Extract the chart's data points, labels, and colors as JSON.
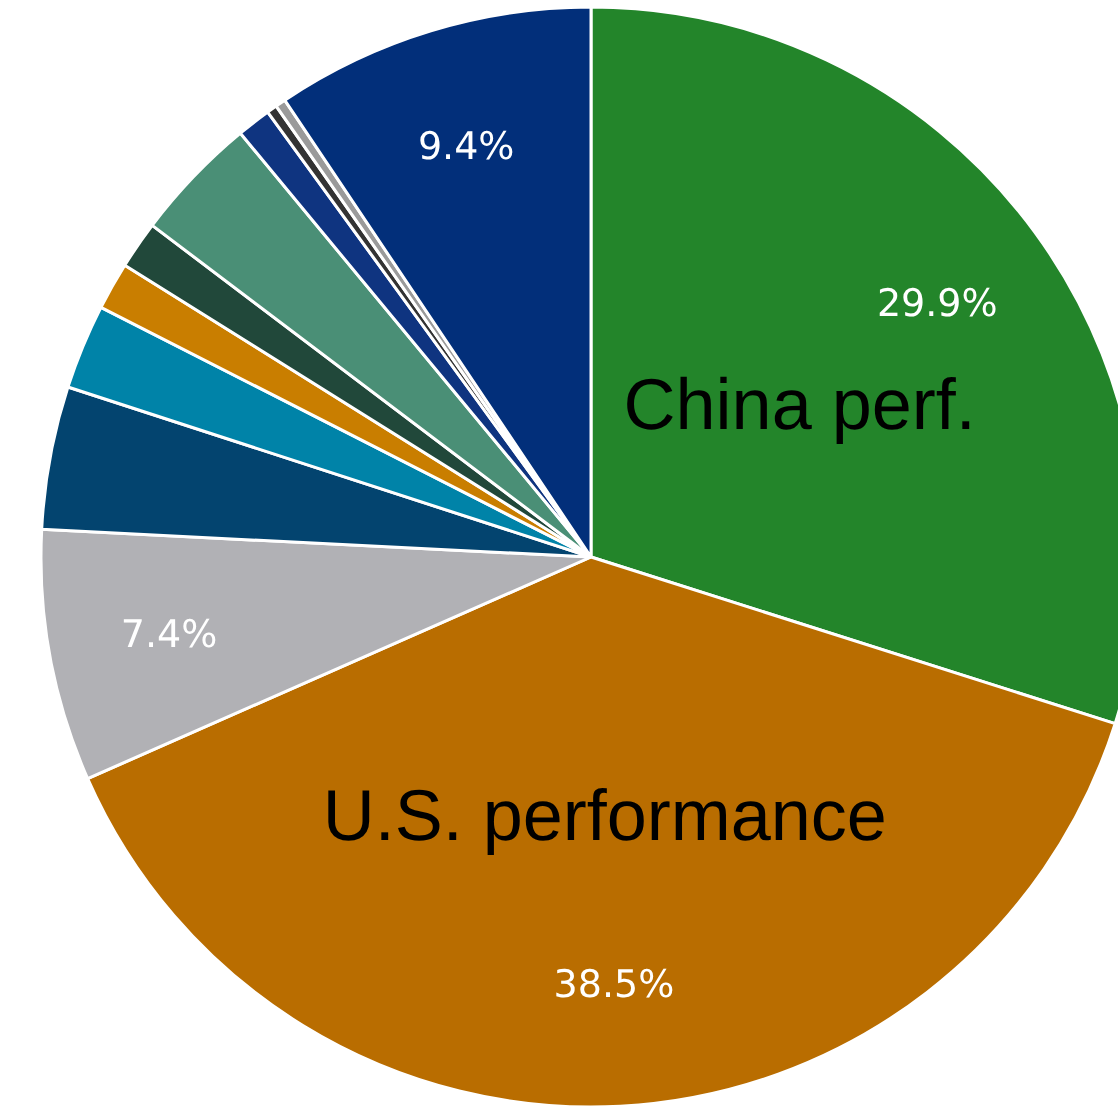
{
  "chart_data": {
    "type": "pie",
    "categories": [
      "China perf.",
      "U.S. performance",
      null,
      null,
      null,
      null,
      null,
      null,
      null,
      null,
      null,
      null
    ],
    "values": [
      29.9,
      38.5,
      7.4,
      4.2,
      2.5,
      1.4,
      1.4,
      3.7,
      1.0,
      0.3,
      0.3,
      9.4
    ],
    "colors": [
      "#23852a",
      "#b96d00",
      "#b1b1b5",
      "#03446f",
      "#0083a8",
      "#c97e00",
      "#21483a",
      "#4a8f76",
      "#0f3480",
      "#333333",
      "#9a9a9a",
      "#022f7a"
    ],
    "value_labels": [
      "29.9%",
      "38.5%",
      "7.4%",
      null,
      null,
      null,
      null,
      null,
      null,
      null,
      null,
      "9.4%"
    ],
    "legend": false
  }
}
